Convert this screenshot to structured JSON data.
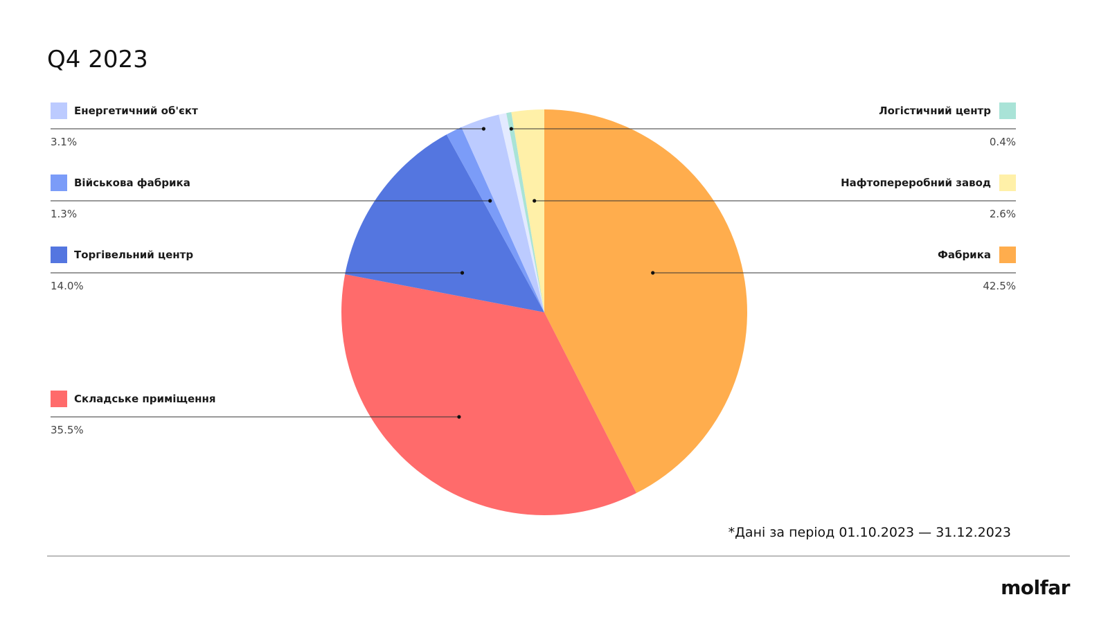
{
  "chart_data": {
    "type": "pie",
    "title": "Q4 2023",
    "slices": [
      {
        "label": "Фабрика",
        "value": 42.5,
        "display": "42.5%",
        "color": "#FFAD4D"
      },
      {
        "label": "Складське приміщення",
        "value": 35.5,
        "display": "35.5%",
        "color": "#FF6B6B"
      },
      {
        "label": "Торгівельний центр",
        "value": 14.0,
        "display": "14.0%",
        "color": "#5476E0"
      },
      {
        "label": "Військова фабрика",
        "value": 1.3,
        "display": "1.3%",
        "color": "#7B9CF8"
      },
      {
        "label": "Енергетичний об'єкт",
        "value": 3.1,
        "display": "3.1%",
        "color": "#BCCBFF"
      },
      {
        "label": "",
        "value": 0.6,
        "display": "",
        "color": "#E3EAFF"
      },
      {
        "label": "Логістичний центр",
        "value": 0.4,
        "display": "0.4%",
        "color": "#A9E3D7"
      },
      {
        "label": "Нафтопереробний завод",
        "value": 2.6,
        "display": "2.6%",
        "color": "#FFF0A8"
      }
    ],
    "start_angle_deg": 0,
    "direction": "clockwise",
    "legend": "callouts-left-right"
  },
  "footnote": "*Дані за період 01.10.2023 — 31.12.2023",
  "brand": "molfar"
}
